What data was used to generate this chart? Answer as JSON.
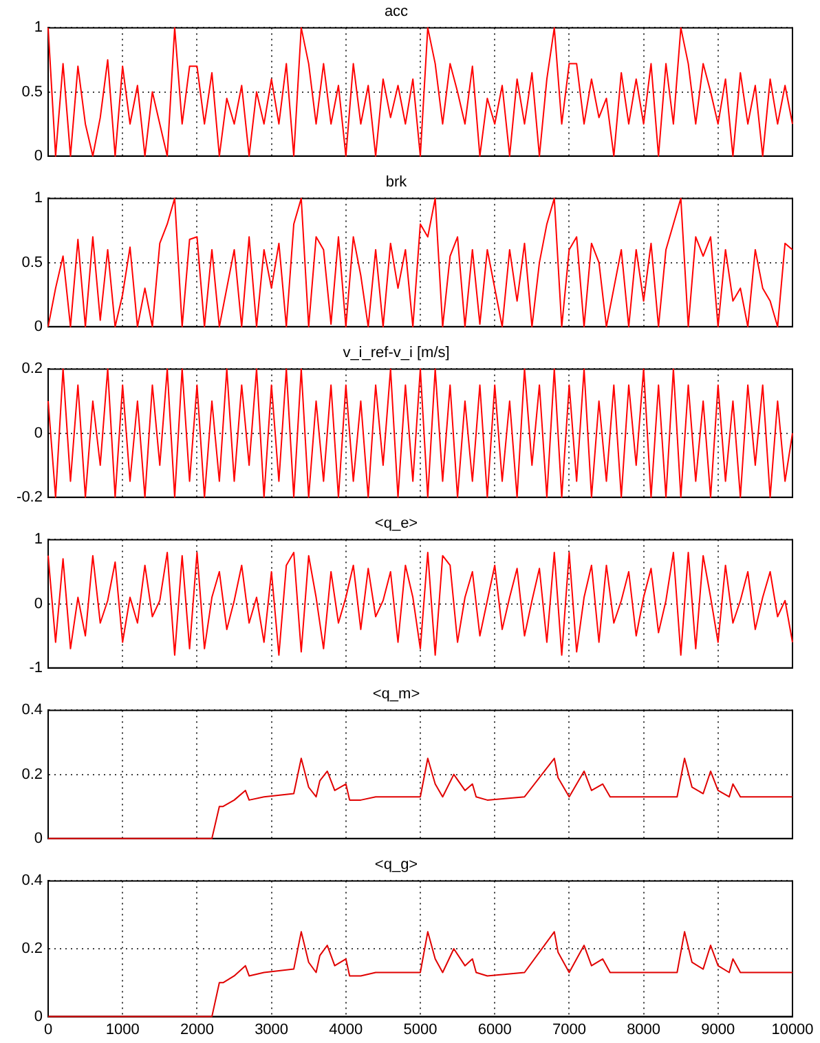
{
  "chart_data": [
    {
      "type": "line",
      "title": "acc",
      "color": "#ff0000",
      "xlim": [
        0,
        10000
      ],
      "xticks": [
        0,
        1000,
        2000,
        3000,
        4000,
        5000,
        6000,
        7000,
        8000,
        9000,
        10000
      ],
      "ylim": [
        0,
        1
      ],
      "yticks": [
        0,
        0.5,
        1
      ],
      "grid": true,
      "tick_labels": "y",
      "x": [
        0,
        100,
        200,
        300,
        400,
        500,
        600,
        700,
        800,
        900,
        1000,
        1100,
        1200,
        1300,
        1400,
        1500,
        1600,
        1700,
        1800,
        1900,
        2000,
        2100,
        2200,
        2300,
        2400,
        2500,
        2600,
        2700,
        2800,
        2900,
        3000,
        3100,
        3200,
        3300,
        3400,
        3500,
        3600,
        3700,
        3800,
        3900,
        4000,
        4100,
        4200,
        4300,
        4400,
        4500,
        4600,
        4700,
        4800,
        4900,
        5000,
        5100,
        5200,
        5300,
        5400,
        5500,
        5600,
        5700,
        5800,
        5900,
        6000,
        6100,
        6200,
        6300,
        6400,
        6500,
        6600,
        6700,
        6800,
        6900,
        7000,
        7100,
        7200,
        7300,
        7400,
        7500,
        7600,
        7700,
        7800,
        7900,
        8000,
        8100,
        8200,
        8300,
        8400,
        8500,
        8600,
        8700,
        8800,
        8900,
        9000,
        9100,
        9200,
        9300,
        9400,
        9500,
        9600,
        9700,
        9800,
        9900,
        10000
      ],
      "values": [
        1,
        0,
        0.72,
        0,
        0.7,
        0.25,
        0,
        0.3,
        0.75,
        0,
        0.7,
        0.25,
        0.55,
        0,
        0.5,
        0.25,
        0,
        1,
        0.25,
        0.7,
        0.7,
        0.25,
        0.65,
        0,
        0.45,
        0.25,
        0.55,
        0,
        0.5,
        0.25,
        0.6,
        0.25,
        0.72,
        0,
        1,
        0.72,
        0.25,
        0.72,
        0.25,
        0.55,
        0,
        0.72,
        0.25,
        0.55,
        0,
        0.6,
        0.3,
        0.55,
        0.25,
        0.6,
        0,
        1,
        0.72,
        0.25,
        0.72,
        0.5,
        0.25,
        0.7,
        0,
        0.45,
        0.25,
        0.55,
        0,
        0.6,
        0.25,
        0.65,
        0,
        0.6,
        1,
        0.25,
        0.72,
        0.72,
        0.25,
        0.6,
        0.3,
        0.45,
        0,
        0.65,
        0.25,
        0.6,
        0.25,
        0.72,
        0,
        0.72,
        0.25,
        1,
        0.72,
        0.25,
        0.72,
        0.5,
        0.25,
        0.6,
        0,
        0.65,
        0.25,
        0.55,
        0,
        0.6,
        0.25,
        0.55,
        0.25
      ]
    },
    {
      "type": "line",
      "title": "brk",
      "color": "#ff0000",
      "xlim": [
        0,
        10000
      ],
      "xticks": [
        0,
        1000,
        2000,
        3000,
        4000,
        5000,
        6000,
        7000,
        8000,
        9000,
        10000
      ],
      "ylim": [
        0,
        1
      ],
      "yticks": [
        0,
        0.5,
        1
      ],
      "grid": true,
      "tick_labels": "y",
      "x": [
        0,
        100,
        200,
        300,
        400,
        500,
        600,
        700,
        800,
        900,
        1000,
        1100,
        1200,
        1300,
        1400,
        1500,
        1600,
        1700,
        1800,
        1900,
        2000,
        2100,
        2200,
        2300,
        2400,
        2500,
        2600,
        2700,
        2800,
        2900,
        3000,
        3100,
        3200,
        3300,
        3400,
        3500,
        3600,
        3700,
        3800,
        3900,
        4000,
        4100,
        4200,
        4300,
        4400,
        4500,
        4600,
        4700,
        4800,
        4900,
        5000,
        5100,
        5200,
        5300,
        5400,
        5500,
        5600,
        5700,
        5800,
        5900,
        6000,
        6100,
        6200,
        6300,
        6400,
        6500,
        6600,
        6700,
        6800,
        6900,
        7000,
        7100,
        7200,
        7300,
        7400,
        7500,
        7600,
        7700,
        7800,
        7900,
        8000,
        8100,
        8200,
        8300,
        8400,
        8500,
        8600,
        8700,
        8800,
        8900,
        9000,
        9100,
        9200,
        9300,
        9400,
        9500,
        9600,
        9700,
        9800,
        9900,
        10000
      ],
      "values": [
        0,
        0.3,
        0.55,
        0,
        0.68,
        0,
        0.7,
        0.05,
        0.6,
        0,
        0.25,
        0.62,
        0,
        0.3,
        0,
        0.65,
        0.8,
        1,
        0,
        0.68,
        0.7,
        0,
        0.6,
        0,
        0.3,
        0.6,
        0,
        0.7,
        0,
        0.6,
        0.3,
        0.65,
        0,
        0.8,
        1,
        0,
        0.7,
        0.6,
        0.02,
        0.7,
        0,
        0.7,
        0.4,
        0,
        0.6,
        0,
        0.65,
        0.3,
        0.6,
        0,
        0.8,
        0.7,
        1,
        0,
        0.55,
        0.7,
        0,
        0.6,
        0.02,
        0.6,
        0.3,
        0,
        0.6,
        0.2,
        0.65,
        0,
        0.5,
        0.8,
        1,
        0,
        0.6,
        0.7,
        0,
        0.65,
        0.5,
        0,
        0.3,
        0.6,
        0,
        0.6,
        0.2,
        0.65,
        0,
        0.6,
        0.8,
        1,
        0,
        0.7,
        0.55,
        0.7,
        0,
        0.6,
        0.2,
        0.3,
        0,
        0.6,
        0.3,
        0.2,
        0,
        0.65,
        0.6
      ]
    },
    {
      "type": "line",
      "title": "v_i_ref-v_i [m/s]",
      "color": "#ff0000",
      "xlim": [
        0,
        10000
      ],
      "xticks": [
        0,
        1000,
        2000,
        3000,
        4000,
        5000,
        6000,
        7000,
        8000,
        9000,
        10000
      ],
      "ylim": [
        -0.2,
        0.2
      ],
      "yticks": [
        -0.2,
        0,
        0.2
      ],
      "grid": true,
      "tick_labels": "y",
      "x": [
        0,
        100,
        200,
        300,
        400,
        500,
        600,
        700,
        800,
        900,
        1000,
        1100,
        1200,
        1300,
        1400,
        1500,
        1600,
        1700,
        1800,
        1900,
        2000,
        2100,
        2200,
        2300,
        2400,
        2500,
        2600,
        2700,
        2800,
        2900,
        3000,
        3100,
        3200,
        3300,
        3400,
        3500,
        3600,
        3700,
        3800,
        3900,
        4000,
        4100,
        4200,
        4300,
        4400,
        4500,
        4600,
        4700,
        4800,
        4900,
        5000,
        5100,
        5200,
        5300,
        5400,
        5500,
        5600,
        5700,
        5800,
        5900,
        6000,
        6100,
        6200,
        6300,
        6400,
        6500,
        6600,
        6700,
        6800,
        6900,
        7000,
        7100,
        7200,
        7300,
        7400,
        7500,
        7600,
        7700,
        7800,
        7900,
        8000,
        8100,
        8200,
        8300,
        8400,
        8500,
        8600,
        8700,
        8800,
        8900,
        9000,
        9100,
        9200,
        9300,
        9400,
        9500,
        9600,
        9700,
        9800,
        9900,
        10000
      ],
      "values": [
        0.1,
        -0.2,
        0.2,
        -0.15,
        0.15,
        -0.2,
        0.1,
        -0.1,
        0.2,
        -0.2,
        0.15,
        -0.15,
        0.1,
        -0.2,
        0.15,
        -0.1,
        0.2,
        -0.2,
        0.2,
        -0.15,
        0.15,
        -0.2,
        0.1,
        -0.15,
        0.2,
        -0.15,
        0.15,
        -0.1,
        0.2,
        -0.2,
        0.15,
        -0.15,
        0.2,
        -0.2,
        0.2,
        -0.2,
        0.1,
        -0.15,
        0.15,
        -0.2,
        0.15,
        -0.15,
        0.1,
        -0.2,
        0.15,
        -0.1,
        0.2,
        -0.2,
        0.15,
        -0.15,
        0.2,
        -0.2,
        0.2,
        -0.15,
        0.15,
        -0.2,
        0.1,
        -0.15,
        0.15,
        -0.2,
        0.15,
        -0.15,
        0.1,
        -0.2,
        0.2,
        -0.1,
        0.15,
        -0.2,
        0.2,
        -0.2,
        0.15,
        -0.15,
        0.2,
        -0.2,
        0.1,
        -0.15,
        0.15,
        -0.2,
        0.15,
        -0.1,
        0.2,
        -0.2,
        0.15,
        -0.2,
        0.2,
        -0.2,
        0.15,
        -0.15,
        0.1,
        -0.2,
        0.15,
        -0.15,
        0.1,
        -0.2,
        0.15,
        -0.1,
        0.15,
        -0.2,
        0.1,
        -0.15,
        0
      ]
    },
    {
      "type": "line",
      "title": "<q_e>",
      "color": "#ff0000",
      "xlim": [
        0,
        10000
      ],
      "xticks": [
        0,
        1000,
        2000,
        3000,
        4000,
        5000,
        6000,
        7000,
        8000,
        9000,
        10000
      ],
      "ylim": [
        -1,
        1
      ],
      "yticks": [
        -1,
        0,
        1
      ],
      "grid": true,
      "tick_labels": "y",
      "x": [
        0,
        100,
        200,
        300,
        400,
        500,
        600,
        700,
        800,
        900,
        1000,
        1100,
        1200,
        1300,
        1400,
        1500,
        1600,
        1700,
        1800,
        1900,
        2000,
        2100,
        2200,
        2300,
        2400,
        2500,
        2600,
        2700,
        2800,
        2900,
        3000,
        3100,
        3200,
        3300,
        3400,
        3500,
        3600,
        3700,
        3800,
        3900,
        4000,
        4100,
        4200,
        4300,
        4400,
        4500,
        4600,
        4700,
        4800,
        4900,
        5000,
        5100,
        5200,
        5300,
        5400,
        5500,
        5600,
        5700,
        5800,
        5900,
        6000,
        6100,
        6200,
        6300,
        6400,
        6500,
        6600,
        6700,
        6800,
        6900,
        7000,
        7100,
        7200,
        7300,
        7400,
        7500,
        7600,
        7700,
        7800,
        7900,
        8000,
        8100,
        8200,
        8300,
        8400,
        8500,
        8600,
        8700,
        8800,
        8900,
        9000,
        9100,
        9200,
        9300,
        9400,
        9500,
        9600,
        9700,
        9800,
        9900,
        10000
      ],
      "values": [
        0.75,
        -0.6,
        0.7,
        -0.7,
        0.1,
        -0.5,
        0.75,
        -0.3,
        0.05,
        0.65,
        -0.6,
        0.1,
        -0.3,
        0.6,
        -0.2,
        0.05,
        0.8,
        -0.8,
        0.75,
        -0.7,
        0.8,
        -0.7,
        0.1,
        0.5,
        -0.4,
        0.05,
        0.6,
        -0.3,
        0.1,
        -0.6,
        0.5,
        -0.8,
        0.6,
        0.8,
        -0.75,
        0.75,
        0.1,
        -0.7,
        0.5,
        -0.3,
        0.1,
        0.6,
        -0.4,
        0.55,
        -0.2,
        0.05,
        0.5,
        -0.6,
        0.6,
        0.1,
        -0.7,
        0.8,
        -0.8,
        0.75,
        0.6,
        -0.6,
        0.1,
        0.5,
        -0.5,
        0.05,
        0.6,
        -0.4,
        0.1,
        0.55,
        -0.5,
        0.05,
        0.55,
        -0.6,
        0.8,
        -0.8,
        0.8,
        -0.75,
        0.1,
        0.6,
        -0.6,
        0.6,
        -0.3,
        0.05,
        0.5,
        -0.5,
        0.1,
        0.55,
        -0.45,
        0.05,
        0.8,
        -0.8,
        0.8,
        -0.7,
        0.75,
        0.1,
        -0.6,
        0.6,
        -0.3,
        0.05,
        0.5,
        -0.4,
        0.1,
        0.5,
        -0.2,
        0.05,
        -0.6
      ]
    },
    {
      "type": "line",
      "title": "<q_m>",
      "color": "#e00000",
      "xlim": [
        0,
        10000
      ],
      "xticks": [
        0,
        1000,
        2000,
        3000,
        4000,
        5000,
        6000,
        7000,
        8000,
        9000,
        10000
      ],
      "ylim": [
        0,
        0.4
      ],
      "yticks": [
        0,
        0.2,
        0.4
      ],
      "grid": true,
      "tick_labels": "y",
      "x": [
        0,
        2200,
        2300,
        2350,
        2500,
        2650,
        2700,
        2900,
        3300,
        3400,
        3500,
        3600,
        3650,
        3750,
        3850,
        4000,
        4050,
        4200,
        4400,
        5000,
        5100,
        5200,
        5300,
        5450,
        5600,
        5700,
        5750,
        5900,
        6400,
        6800,
        6850,
        7000,
        7200,
        7300,
        7450,
        7550,
        8450,
        8550,
        8650,
        8800,
        8900,
        9000,
        9150,
        9200,
        9300,
        10000
      ],
      "values": [
        0,
        0,
        0.1,
        0.1,
        0.12,
        0.15,
        0.12,
        0.13,
        0.14,
        0.25,
        0.16,
        0.13,
        0.18,
        0.21,
        0.15,
        0.17,
        0.12,
        0.12,
        0.13,
        0.13,
        0.25,
        0.17,
        0.13,
        0.2,
        0.15,
        0.17,
        0.13,
        0.12,
        0.13,
        0.25,
        0.19,
        0.13,
        0.21,
        0.15,
        0.17,
        0.13,
        0.13,
        0.25,
        0.16,
        0.14,
        0.21,
        0.15,
        0.13,
        0.17,
        0.13,
        0.13
      ]
    },
    {
      "type": "line",
      "title": "<q_g>",
      "color": "#e00000",
      "xlim": [
        0,
        10000
      ],
      "xticks": [
        0,
        1000,
        2000,
        3000,
        4000,
        5000,
        6000,
        7000,
        8000,
        9000,
        10000
      ],
      "ylim": [
        0,
        0.4
      ],
      "yticks": [
        0,
        0.2,
        0.4
      ],
      "grid": true,
      "x": [
        0,
        2200,
        2300,
        2350,
        2500,
        2650,
        2700,
        2900,
        3300,
        3400,
        3500,
        3600,
        3650,
        3750,
        3850,
        4000,
        4050,
        4200,
        4400,
        5000,
        5100,
        5200,
        5300,
        5450,
        5600,
        5700,
        5750,
        5900,
        6400,
        6800,
        6850,
        7000,
        7200,
        7300,
        7450,
        7550,
        8450,
        8550,
        8650,
        8800,
        8900,
        9000,
        9150,
        9200,
        9300,
        10000
      ],
      "values": [
        0,
        0,
        0.1,
        0.1,
        0.12,
        0.15,
        0.12,
        0.13,
        0.14,
        0.25,
        0.16,
        0.13,
        0.18,
        0.21,
        0.15,
        0.17,
        0.12,
        0.12,
        0.13,
        0.13,
        0.25,
        0.17,
        0.13,
        0.2,
        0.15,
        0.17,
        0.13,
        0.12,
        0.13,
        0.25,
        0.19,
        0.13,
        0.21,
        0.15,
        0.17,
        0.13,
        0.13,
        0.25,
        0.16,
        0.14,
        0.21,
        0.15,
        0.13,
        0.17,
        0.13,
        0.13
      ]
    }
  ]
}
